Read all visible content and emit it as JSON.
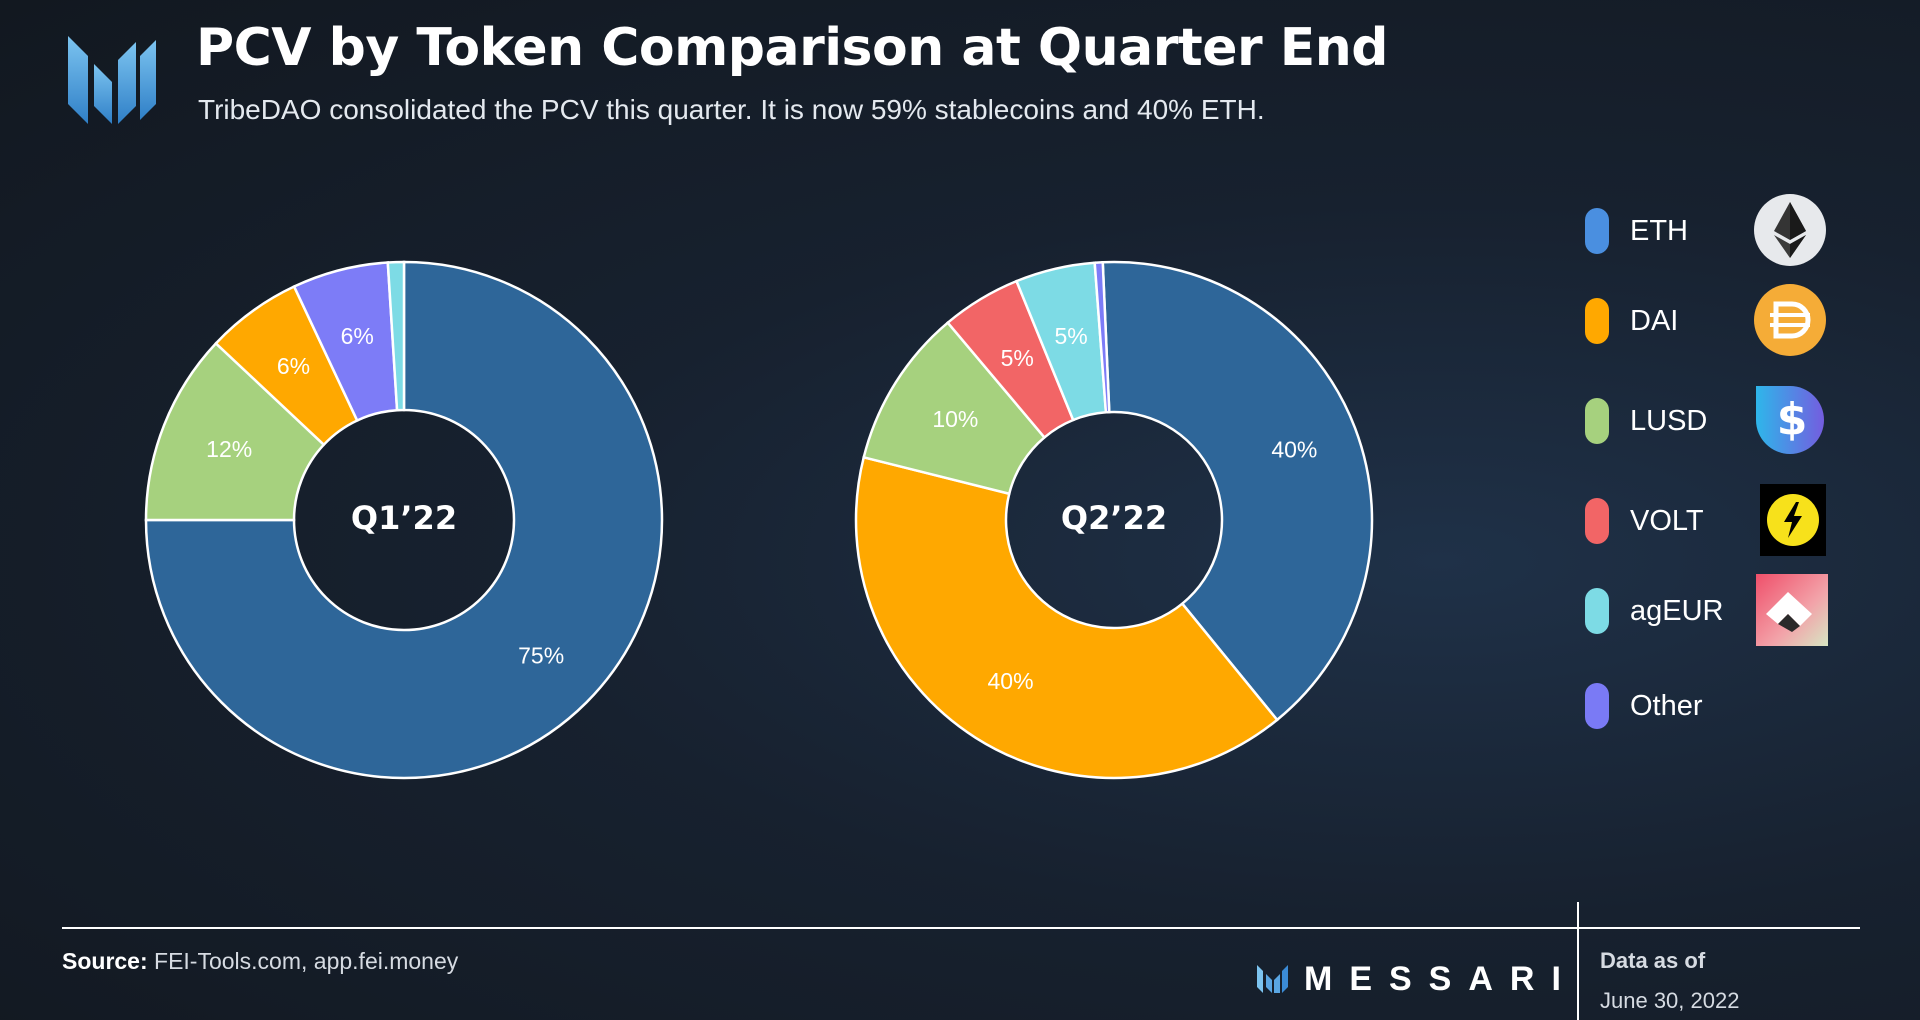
{
  "header": {
    "title": "PCV by Token Comparison at Quarter End",
    "subtitle": "TribeDAO consolidated the PCV this quarter. It is now 59% stablecoins and 40% ETH."
  },
  "colors": {
    "ETH": "#2e6699",
    "DAI": "#ffa800",
    "LUSD": "#a6d17e",
    "VOLT": "#f26566",
    "agEUR": "#7ddbe5",
    "Other": "#7d7cf7",
    "legend_ETH": "#4a8fe0",
    "legend_Other": "#7a7af5",
    "background": "#17212f"
  },
  "legend": {
    "items": [
      {
        "label": "ETH",
        "icon": "ethereum-icon"
      },
      {
        "label": "DAI",
        "icon": "dai-icon"
      },
      {
        "label": "LUSD",
        "icon": "lusd-icon"
      },
      {
        "label": "VOLT",
        "icon": "volt-icon"
      },
      {
        "label": "agEUR",
        "icon": "angle-ageur-icon"
      },
      {
        "label": "Other",
        "icon": ""
      }
    ]
  },
  "chart_data": [
    {
      "type": "pie",
      "center_label": "Q1’22",
      "slices": [
        {
          "label": "ETH",
          "value": 75,
          "display": "75%"
        },
        {
          "label": "LUSD",
          "value": 12,
          "display": "12%"
        },
        {
          "label": "DAI",
          "value": 6,
          "display": "6%"
        },
        {
          "label": "Other",
          "value": 6,
          "display": "6%"
        },
        {
          "label": "agEUR",
          "value": 1,
          "display": ""
        }
      ]
    },
    {
      "type": "pie",
      "center_label": "Q2’22",
      "slices": [
        {
          "label": "ETH",
          "value": 40,
          "display": "40%"
        },
        {
          "label": "DAI",
          "value": 40,
          "display": "40%"
        },
        {
          "label": "LUSD",
          "value": 10,
          "display": "10%"
        },
        {
          "label": "VOLT",
          "value": 5,
          "display": "5%"
        },
        {
          "label": "agEUR",
          "value": 5,
          "display": "5%"
        },
        {
          "label": "Other",
          "value": 0.5,
          "display": ""
        }
      ]
    }
  ],
  "footer": {
    "source_label": "Source:",
    "source_text": "FEI-Tools.com, app.fei.money",
    "brand": "MESSARI",
    "as_of_label": "Data as of",
    "as_of_date": "June 30, 2022"
  }
}
